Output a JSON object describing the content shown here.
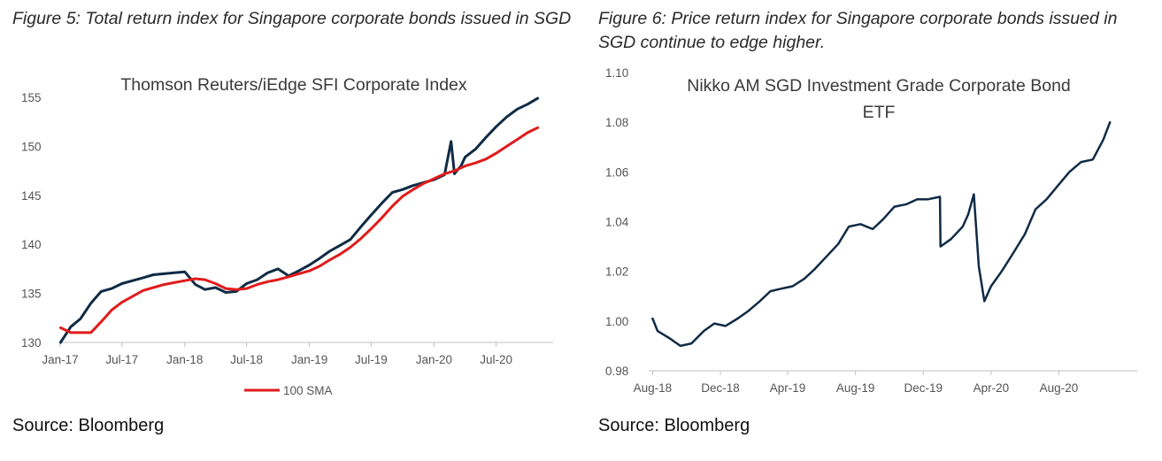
{
  "left_figure": {
    "caption": "Figure 5: Total return index for Singapore corporate bonds issued in SGD",
    "source": "Source: Bloomberg"
  },
  "right_figure": {
    "caption": "Figure 6: Price return index for Singapore corporate bonds issued in SGD continue to edge higher.",
    "source": "Source: Bloomberg"
  },
  "chart_data": [
    {
      "type": "line",
      "title": "Thomson Reuters/iEdge SFI Corporate Index",
      "xlabel": "",
      "ylabel": "",
      "x_ticks": [
        "Jan-17",
        "Jul-17",
        "Jan-18",
        "Jul-18",
        "Jan-19",
        "Jul-19",
        "Jan-20",
        "Jul-20"
      ],
      "ylim": [
        130,
        155
      ],
      "y_ticks": [
        130,
        135,
        140,
        145,
        150,
        155
      ],
      "grid": false,
      "legend": {
        "placement": "bottom",
        "entries": [
          "100 SMA"
        ]
      },
      "series": [
        {
          "name": "",
          "color": "#0f2b45",
          "x": [
            "2017-01-02",
            "2017-02-01",
            "2017-03-01",
            "2017-04-01",
            "2017-05-01",
            "2017-06-01",
            "2017-07-01",
            "2017-08-01",
            "2017-09-01",
            "2017-10-01",
            "2017-11-01",
            "2017-12-01",
            "2018-01-01",
            "2018-02-01",
            "2018-03-01",
            "2018-04-01",
            "2018-05-01",
            "2018-06-01",
            "2018-07-01",
            "2018-08-01",
            "2018-09-01",
            "2018-10-01",
            "2018-11-01",
            "2018-12-01",
            "2019-01-01",
            "2019-02-01",
            "2019-03-01",
            "2019-04-01",
            "2019-05-01",
            "2019-06-01",
            "2019-07-01",
            "2019-08-01",
            "2019-09-01",
            "2019-10-01",
            "2019-11-01",
            "2019-12-01",
            "2020-01-01",
            "2020-02-01",
            "2020-02-20",
            "2020-03-01",
            "2020-03-10",
            "2020-03-20",
            "2020-04-01",
            "2020-05-01",
            "2020-06-01",
            "2020-07-01",
            "2020-08-01",
            "2020-09-01",
            "2020-10-01",
            "2020-10-31"
          ],
          "values": [
            130.0,
            131.6,
            132.4,
            134.0,
            135.2,
            135.5,
            136.0,
            136.3,
            136.6,
            136.9,
            137.0,
            137.1,
            137.2,
            135.9,
            135.4,
            135.6,
            135.1,
            135.2,
            136.0,
            136.4,
            137.1,
            137.5,
            136.8,
            137.3,
            137.9,
            138.6,
            139.3,
            139.9,
            140.5,
            141.8,
            143.0,
            144.2,
            145.3,
            145.6,
            146.0,
            146.3,
            146.6,
            147.1,
            150.5,
            147.2,
            147.6,
            148.0,
            148.9,
            149.7,
            150.9,
            152.0,
            153.0,
            153.8,
            154.3,
            154.9
          ]
        },
        {
          "name": "100 SMA",
          "color": "#e01b1b",
          "x": [
            "2017-01-02",
            "2017-02-01",
            "2017-03-01",
            "2017-04-01",
            "2017-05-01",
            "2017-06-01",
            "2017-07-01",
            "2017-08-01",
            "2017-09-01",
            "2017-10-01",
            "2017-11-01",
            "2017-12-01",
            "2018-01-01",
            "2018-02-01",
            "2018-03-01",
            "2018-04-01",
            "2018-05-01",
            "2018-06-01",
            "2018-07-01",
            "2018-08-01",
            "2018-09-01",
            "2018-10-01",
            "2018-11-01",
            "2018-12-01",
            "2019-01-01",
            "2019-02-01",
            "2019-03-01",
            "2019-04-01",
            "2019-05-01",
            "2019-06-01",
            "2019-07-01",
            "2019-08-01",
            "2019-09-01",
            "2019-10-01",
            "2019-11-01",
            "2019-12-01",
            "2020-01-01",
            "2020-02-01",
            "2020-03-01",
            "2020-04-01",
            "2020-05-01",
            "2020-06-01",
            "2020-07-01",
            "2020-08-01",
            "2020-09-01",
            "2020-10-01",
            "2020-10-31"
          ],
          "values": [
            131.5,
            131.0,
            131.0,
            131.0,
            132.1,
            133.3,
            134.1,
            134.7,
            135.3,
            135.6,
            135.9,
            136.1,
            136.3,
            136.5,
            136.4,
            136.0,
            135.5,
            135.4,
            135.5,
            135.9,
            136.2,
            136.4,
            136.7,
            137.0,
            137.3,
            137.8,
            138.4,
            139.0,
            139.7,
            140.6,
            141.6,
            142.7,
            143.9,
            144.9,
            145.6,
            146.2,
            146.7,
            147.2,
            147.5,
            148.0,
            148.3,
            148.7,
            149.3,
            150.0,
            150.7,
            151.4,
            151.9
          ]
        }
      ]
    },
    {
      "type": "line",
      "title": "Nikko AM SGD Investment Grade Corporate Bond ETF",
      "xlabel": "",
      "ylabel": "",
      "x_ticks": [
        "Aug-18",
        "Dec-18",
        "Apr-19",
        "Aug-19",
        "Dec-19",
        "Apr-20",
        "Aug-20"
      ],
      "ylim": [
        0.98,
        1.1
      ],
      "y_ticks": [
        "0.98",
        "1.00",
        "1.02",
        "1.04",
        "1.06",
        "1.08",
        "1.10"
      ],
      "grid": false,
      "series": [
        {
          "name": "",
          "color": "#0f2b45",
          "x": [
            "2018-08-01",
            "2018-08-10",
            "2018-09-01",
            "2018-09-20",
            "2018-10-10",
            "2018-11-01",
            "2018-11-20",
            "2018-12-10",
            "2019-01-01",
            "2019-01-20",
            "2019-02-10",
            "2019-03-01",
            "2019-03-20",
            "2019-04-10",
            "2019-05-01",
            "2019-05-20",
            "2019-06-10",
            "2019-07-01",
            "2019-07-20",
            "2019-08-10",
            "2019-09-01",
            "2019-09-20",
            "2019-10-10",
            "2019-11-01",
            "2019-11-20",
            "2019-12-10",
            "2019-12-31",
            "2020-01-01",
            "2020-01-20",
            "2020-02-10",
            "2020-02-20",
            "2020-03-01",
            "2020-03-10",
            "2020-03-20",
            "2020-04-01",
            "2020-04-20",
            "2020-05-10",
            "2020-06-01",
            "2020-06-20",
            "2020-07-10",
            "2020-08-01",
            "2020-08-20",
            "2020-09-10",
            "2020-10-01",
            "2020-10-20",
            "2020-11-01"
          ],
          "values": [
            1.001,
            0.996,
            0.993,
            0.99,
            0.991,
            0.996,
            0.999,
            0.998,
            1.001,
            1.004,
            1.008,
            1.012,
            1.013,
            1.014,
            1.017,
            1.021,
            1.026,
            1.031,
            1.038,
            1.039,
            1.037,
            1.041,
            1.046,
            1.047,
            1.049,
            1.049,
            1.05,
            1.03,
            1.033,
            1.038,
            1.043,
            1.051,
            1.022,
            1.008,
            1.014,
            1.02,
            1.027,
            1.035,
            1.045,
            1.049,
            1.055,
            1.06,
            1.064,
            1.065,
            1.073,
            1.08
          ]
        }
      ]
    }
  ]
}
